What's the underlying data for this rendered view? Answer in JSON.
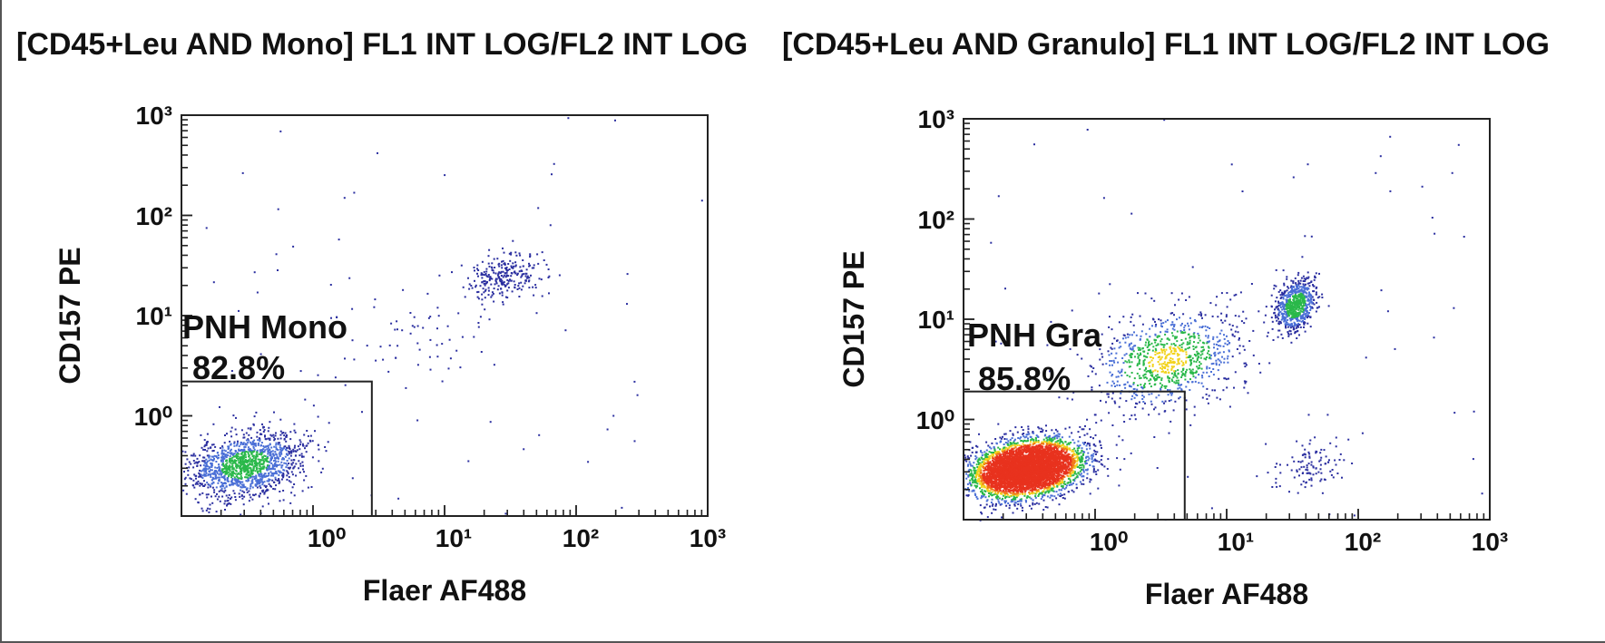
{
  "chart_data": [
    {
      "type": "scatter",
      "title": "[CD45+Leu AND Mono] FL1 INT LOG/FL2 INT LOG",
      "xlabel": "Flaer AF488",
      "ylabel": "CD157 PE",
      "x_scale": "log",
      "y_scale": "log",
      "xlim": [
        0.1,
        1000
      ],
      "ylim": [
        0.1,
        1000
      ],
      "x_ticks": [
        "10⁰",
        "10¹",
        "10²",
        "10³"
      ],
      "y_ticks": [
        "10³",
        "10²",
        "10¹",
        "10⁰"
      ],
      "gate": {
        "label": "PNH Mono",
        "percent": "82.8%",
        "x_range": [
          0.1,
          2.8
        ],
        "y_range": [
          0.1,
          2.2
        ]
      },
      "populations": [
        {
          "name": "",
          "center_x": 0.3,
          "center_y": 0.33,
          "count": 1400,
          "spread_x": 0.22,
          "spread_y": 0.18
        },
        {
          "name": "",
          "center_x": 28,
          "center_y": 25,
          "count": 260,
          "spread_x": 0.14,
          "spread_y": 0.12
        },
        {
          "name": "",
          "center_x": 5,
          "center_y": 6,
          "count": 70,
          "spread_x": 0.35,
          "spread_y": 0.3
        }
      ],
      "density_colors": [
        "#2b2fa0",
        "#4a6fd6",
        "#2ab84a",
        "#f2d31c",
        "#f07a18",
        "#e8321e"
      ],
      "peak_density": 0.45
    },
    {
      "type": "scatter",
      "title": "[CD45+Leu AND Granulo] FL1 INT LOG/FL2 INT LOG",
      "xlabel": "Flaer AF488",
      "ylabel": "CD157 PE",
      "x_scale": "log",
      "y_scale": "log",
      "xlim": [
        0.1,
        1000
      ],
      "ylim": [
        0.1,
        1000
      ],
      "x_ticks": [
        "10⁰",
        "10¹",
        "10²",
        "10³"
      ],
      "y_ticks": [
        "10³",
        "10²",
        "10¹",
        "10⁰"
      ],
      "gate": {
        "label": "PNH Gra",
        "percent": "85.8%",
        "x_range": [
          0.1,
          4.8
        ],
        "y_range": [
          0.1,
          1.9
        ]
      },
      "populations": [
        {
          "name": "",
          "center_x": 0.3,
          "center_y": 0.33,
          "count": 5200,
          "spread_x": 0.2,
          "spread_y": 0.15
        },
        {
          "name": "",
          "center_x": 33,
          "center_y": 14,
          "count": 700,
          "spread_x": 0.08,
          "spread_y": 0.14
        },
        {
          "name": "",
          "center_x": 3.5,
          "center_y": 4,
          "count": 900,
          "spread_x": 0.28,
          "spread_y": 0.26
        },
        {
          "name": "",
          "center_x": 45,
          "center_y": 0.35,
          "count": 110,
          "spread_x": 0.15,
          "spread_y": 0.15
        }
      ],
      "density_colors": [
        "#2b2fa0",
        "#4a6fd6",
        "#2ab84a",
        "#f2d31c",
        "#f07a18",
        "#e8321e"
      ],
      "peak_density": 1.0
    }
  ]
}
